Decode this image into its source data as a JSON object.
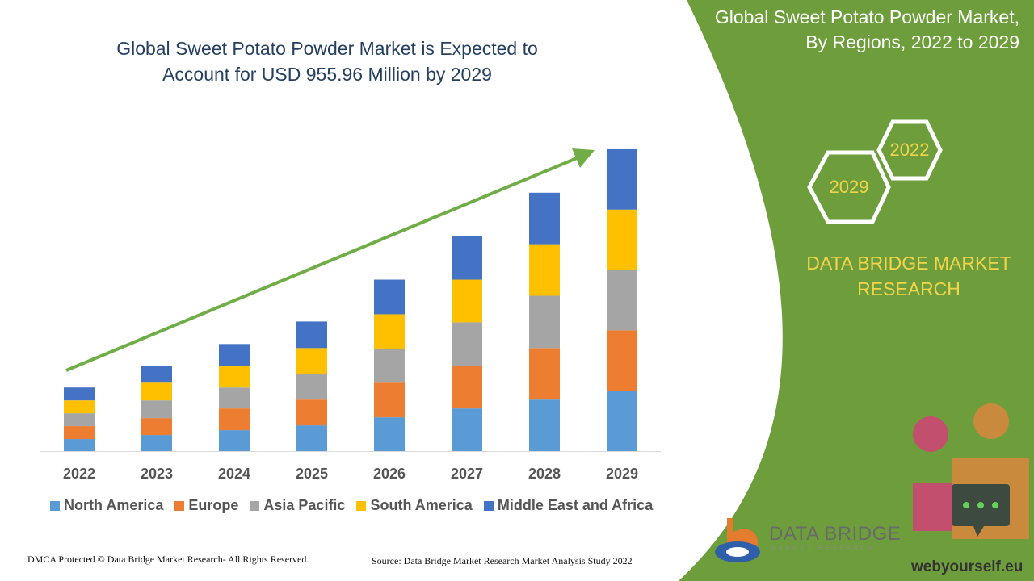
{
  "title": {
    "line1": "Global Sweet Potato Powder Market is Expected to",
    "line2": "Account for USD 955.96 Million by 2029"
  },
  "panel": {
    "title_line1": "Global Sweet Potato Powder Market,",
    "title_line2": "By Regions, 2022 to 2029",
    "hex_top": "2022",
    "hex_bottom": "2029",
    "brand_line1": "DATA BRIDGE MARKET",
    "brand_line2": "RESEARCH",
    "background_color": "#6e9e3b",
    "accent_text_color": "#f2d44a"
  },
  "footer": {
    "copyright": "DMCA Protected © Data Bridge Market Research- All Rights Reserved.",
    "source": "Source: Data Bridge Market Research Market Analysis Study 2022"
  },
  "logo": {
    "name": "DATA BRIDGE",
    "tagline": "MARKET RESEARCH"
  },
  "watermark_site": "webyourself.eu",
  "chart_data": {
    "type": "bar",
    "stacked": true,
    "categories": [
      "2022",
      "2023",
      "2024",
      "2025",
      "2026",
      "2027",
      "2028",
      "2029"
    ],
    "series": [
      {
        "name": "North America",
        "color": "#5b9bd5",
        "values": [
          15,
          20,
          26,
          32,
          42,
          53,
          64,
          75
        ]
      },
      {
        "name": "Europe",
        "color": "#ed7d31",
        "values": [
          16,
          21,
          27,
          32,
          43,
          53,
          64,
          75
        ]
      },
      {
        "name": "Asia Pacific",
        "color": "#a5a5a5",
        "values": [
          16,
          22,
          26,
          32,
          42,
          54,
          65,
          75
        ]
      },
      {
        "name": "South America",
        "color": "#ffc000",
        "values": [
          16,
          22,
          27,
          32,
          43,
          53,
          64,
          75
        ]
      },
      {
        "name": "Middle East and Africa",
        "color": "#4472c4",
        "values": [
          16,
          21,
          27,
          33,
          43,
          54,
          64,
          75
        ]
      }
    ],
    "ylim": [
      0,
      400
    ],
    "grid": false,
    "legend_position": "bottom",
    "trend_arrow": {
      "color": "#70ad47"
    }
  }
}
